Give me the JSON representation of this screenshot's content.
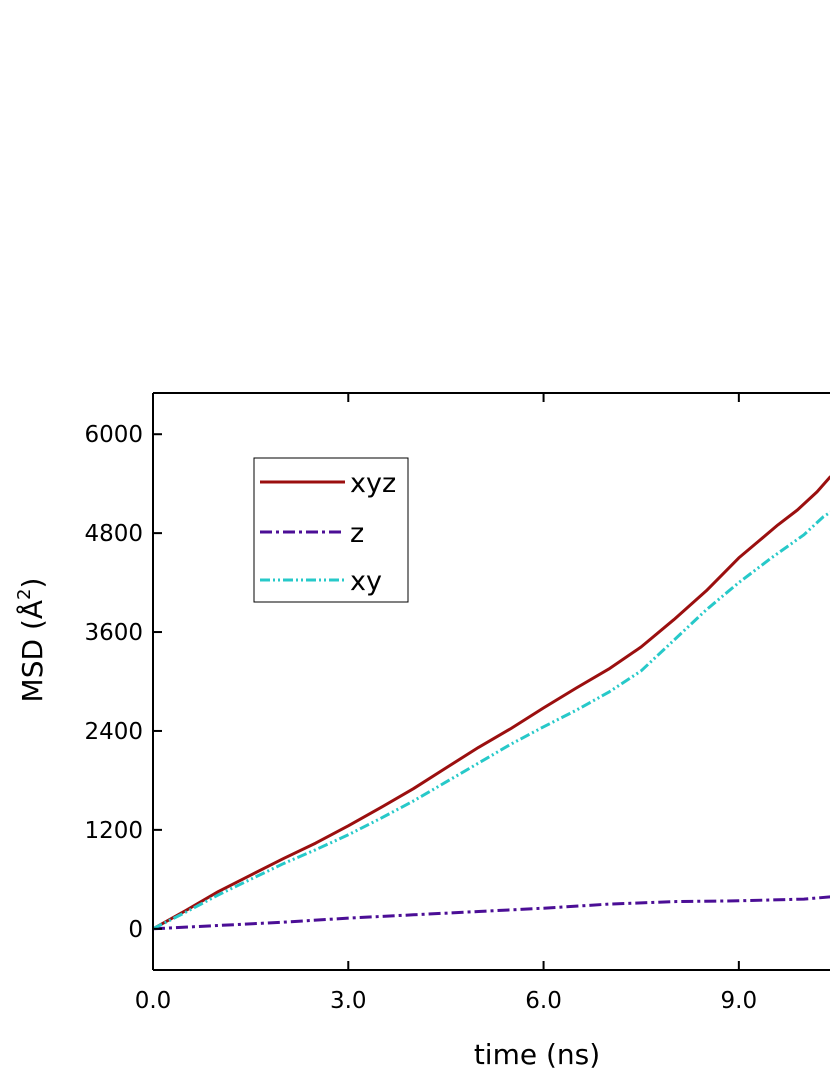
{
  "chart_data": {
    "type": "line",
    "title": "",
    "xlabel": "time (ns)",
    "ylabel_main": "MSD (Å",
    "ylabel_sup": "2",
    "ylabel_close": ")",
    "xlim": [
      0,
      10.6
    ],
    "ylim": [
      -500,
      6500
    ],
    "xticks": [
      0,
      3,
      6,
      9
    ],
    "xtick_labels": [
      "0.0",
      "3.0",
      "6.0",
      "9.0"
    ],
    "yticks": [
      0,
      1200,
      2400,
      3600,
      4800,
      6000
    ],
    "ytick_labels": [
      "0",
      "1200",
      "2400",
      "3600",
      "4800",
      "6000"
    ],
    "grid": false,
    "legend_position": "top-left",
    "series": [
      {
        "name": "xyz",
        "color": "#9b0f0f",
        "style": "solid",
        "x": [
          0,
          0.5,
          1,
          1.5,
          2,
          2.5,
          3,
          3.5,
          4,
          4.5,
          5,
          5.5,
          6,
          6.5,
          7,
          7.5,
          8,
          8.5,
          9,
          9.3,
          9.6,
          9.9,
          10.2,
          10.4,
          10.6
        ],
        "y": [
          0,
          220,
          450,
          650,
          850,
          1040,
          1250,
          1470,
          1700,
          1950,
          2200,
          2430,
          2680,
          2920,
          3150,
          3420,
          3750,
          4100,
          4500,
          4700,
          4900,
          5080,
          5300,
          5480,
          5560
        ]
      },
      {
        "name": "z",
        "color": "#4b0e96",
        "style": "dash-dot",
        "x": [
          0,
          1,
          2,
          3,
          4,
          5,
          6,
          7,
          8,
          9,
          10,
          10.6
        ],
        "y": [
          0,
          40,
          80,
          130,
          170,
          210,
          250,
          300,
          330,
          340,
          360,
          400
        ]
      },
      {
        "name": "xy",
        "color": "#27c9c9",
        "style": "dash-dot-dot",
        "x": [
          0,
          0.5,
          1,
          1.5,
          2,
          2.5,
          3,
          3.5,
          4,
          4.5,
          5,
          5.5,
          6,
          6.5,
          7,
          7.5,
          8,
          8.5,
          9,
          9.5,
          10,
          10.3,
          10.6
        ],
        "y": [
          0,
          200,
          410,
          600,
          790,
          960,
          1140,
          1340,
          1550,
          1780,
          2010,
          2240,
          2450,
          2650,
          2870,
          3130,
          3500,
          3870,
          4200,
          4500,
          4780,
          5000,
          5150
        ]
      }
    ]
  }
}
